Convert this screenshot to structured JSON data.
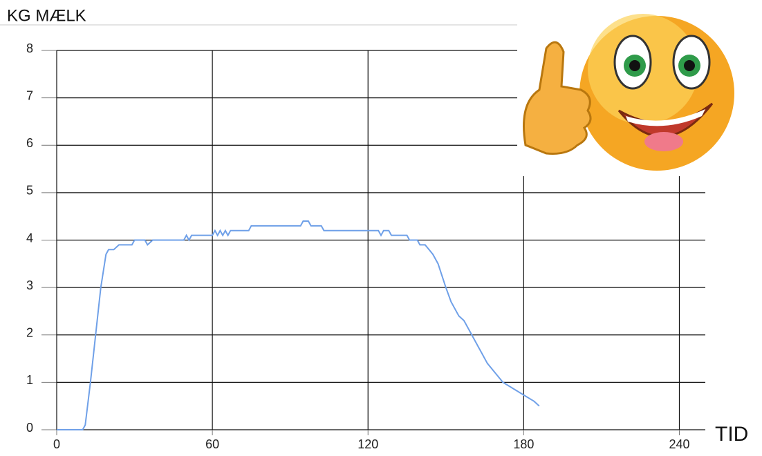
{
  "chart_data": {
    "type": "line",
    "y_label": "KG MÆLK",
    "x_label": "TID",
    "x": [
      0,
      10,
      11,
      13,
      15,
      17,
      19,
      20,
      22,
      24,
      29,
      30,
      34,
      35,
      37,
      49,
      50,
      51,
      52,
      60,
      61,
      62,
      63,
      64,
      65,
      66,
      67,
      74,
      75,
      94,
      95,
      97,
      98,
      102,
      103,
      124,
      125,
      126,
      128,
      129,
      135,
      136,
      139,
      140,
      142,
      145,
      147,
      150,
      152,
      155,
      157,
      160,
      163,
      166,
      169,
      172,
      175,
      178,
      181,
      184,
      186
    ],
    "values": [
      0,
      0,
      0.1,
      1,
      2,
      3,
      3.7,
      3.8,
      3.8,
      3.9,
      3.9,
      4.0,
      4.0,
      3.9,
      4.0,
      4.0,
      4.1,
      4.0,
      4.1,
      4.1,
      4.2,
      4.1,
      4.2,
      4.1,
      4.2,
      4.1,
      4.2,
      4.2,
      4.3,
      4.3,
      4.4,
      4.4,
      4.3,
      4.3,
      4.2,
      4.2,
      4.1,
      4.2,
      4.2,
      4.1,
      4.1,
      4.0,
      4.0,
      3.9,
      3.9,
      3.7,
      3.5,
      3.0,
      2.7,
      2.4,
      2.3,
      2.0,
      1.7,
      1.4,
      1.2,
      1.0,
      0.9,
      0.8,
      0.7,
      0.6,
      0.5
    ],
    "color": "#6fa0e8",
    "xlim": [
      0,
      250
    ],
    "ylim": [
      0,
      8
    ],
    "xticks": [
      0,
      60,
      120,
      180,
      240
    ],
    "yticks": [
      0,
      1,
      2,
      3,
      4,
      5,
      6,
      7,
      8
    ],
    "grid": true
  }
}
